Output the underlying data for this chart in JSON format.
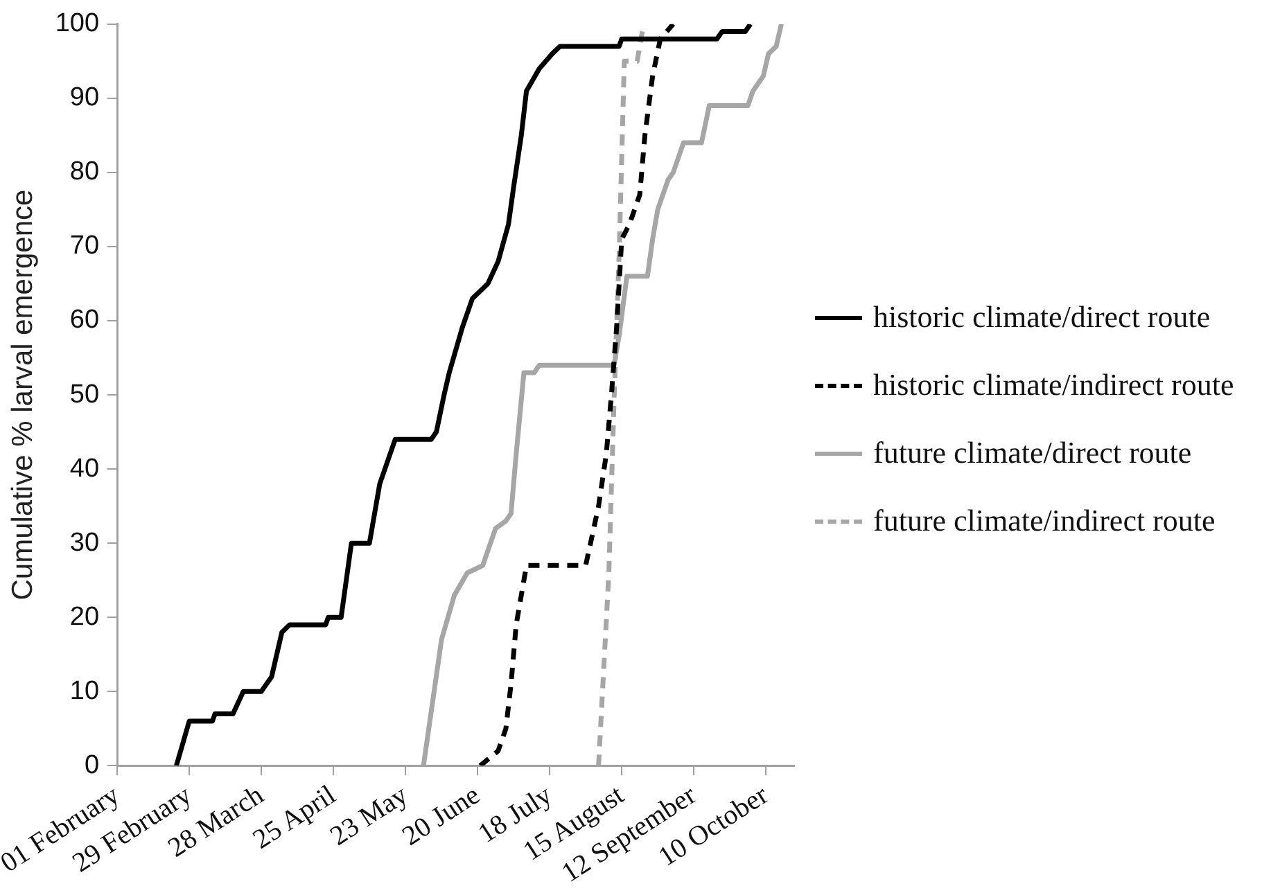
{
  "chart_data": {
    "type": "line",
    "ylabel": "Cumulative % larval emergence",
    "xlim": [
      "--02-01",
      "--10-21"
    ],
    "ylim": [
      0,
      100
    ],
    "xticks": [
      {
        "value": "--02-01",
        "label": "01 February"
      },
      {
        "value": "--02-29",
        "label": "29 February"
      },
      {
        "value": "--03-28",
        "label": "28 March"
      },
      {
        "value": "--04-25",
        "label": "25 April"
      },
      {
        "value": "--05-23",
        "label": "23 May"
      },
      {
        "value": "--06-20",
        "label": "20 June"
      },
      {
        "value": "--07-18",
        "label": "18 July"
      },
      {
        "value": "--08-15",
        "label": "15 August"
      },
      {
        "value": "--09-12",
        "label": "12 September"
      },
      {
        "value": "--10-10",
        "label": "10 October"
      }
    ],
    "yticks": [
      0,
      10,
      20,
      30,
      40,
      50,
      60,
      70,
      80,
      90,
      100
    ],
    "grid": false,
    "legend": "right",
    "marker": "none",
    "series": [
      {
        "name": "historic climate/direct route",
        "color": "#000000",
        "line_style": "solid",
        "x": [
          "--02-24",
          "--02-29",
          "--03-09",
          "--03-10",
          "--03-17",
          "--03-21",
          "--03-28",
          "--03-30",
          "--04-01",
          "--04-05",
          "--04-08",
          "--04-22",
          "--04-23",
          "--04-28",
          "--05-02",
          "--05-09",
          "--05-13",
          "--05-15",
          "--05-17",
          "--05-19",
          "--06-02",
          "--06-04",
          "--06-07",
          "--06-09",
          "--06-14",
          "--06-18",
          "--06-24",
          "--06-28",
          "--07-02",
          "--07-04",
          "--07-07",
          "--07-09",
          "--07-14",
          "--07-19",
          "--07-22",
          "--08-14",
          "--08-15",
          "--09-21",
          "--09-23",
          "--10-02",
          "--10-04"
        ],
        "values": [
          0,
          6,
          6,
          7,
          7,
          10,
          10,
          11,
          12,
          18,
          19,
          19,
          20,
          20,
          30,
          30,
          38,
          40,
          42,
          44,
          44,
          45,
          50,
          53,
          59,
          63,
          65,
          68,
          73,
          78,
          85,
          91,
          94,
          96,
          97,
          97,
          98,
          98,
          99,
          99,
          100
        ]
      },
      {
        "name": "historic climate/indirect route",
        "color": "#000000",
        "line_style": "dashed",
        "x": [
          "--06-21",
          "--06-28",
          "--07-01",
          "--07-03",
          "--07-05",
          "--07-09",
          "--08-01",
          "--08-06",
          "--08-09",
          "--08-11",
          "--08-13",
          "--08-15",
          "--08-18",
          "--08-22",
          "--08-24",
          "--08-27",
          "--08-30",
          "--09-04"
        ],
        "values": [
          0,
          2,
          5,
          11,
          19,
          27,
          27,
          35,
          42,
          50,
          59,
          71,
          73,
          77,
          85,
          93,
          98,
          100
        ]
      },
      {
        "name": "future climate/direct route",
        "color": "#a6a6a6",
        "line_style": "solid",
        "x": [
          "--05-30",
          "--06-06",
          "--06-11",
          "--06-16",
          "--06-22",
          "--06-24",
          "--06-27",
          "--07-01",
          "--07-03",
          "--07-05",
          "--07-08",
          "--07-12",
          "--07-14",
          "--08-12",
          "--08-14",
          "--08-17",
          "--08-25",
          "--08-27",
          "--08-29",
          "--09-02",
          "--09-04",
          "--09-08",
          "--09-15",
          "--09-18",
          "--10-03",
          "--10-05",
          "--10-09",
          "--10-11",
          "--10-14",
          "--10-16"
        ],
        "values": [
          0,
          17,
          23,
          26,
          27,
          29,
          32,
          33,
          34,
          42,
          53,
          53,
          54,
          54,
          58,
          66,
          66,
          71,
          75,
          79,
          80,
          84,
          84,
          89,
          89,
          91,
          93,
          96,
          97,
          100
        ]
      },
      {
        "name": "future climate/indirect route",
        "color": "#a6a6a6",
        "line_style": "dashed",
        "x": [
          "--08-06",
          "--08-10",
          "--08-12",
          "--08-14",
          "--08-15",
          "--08-16",
          "--08-21",
          "--08-23",
          "--08-24"
        ],
        "values": [
          0,
          26,
          49,
          69,
          82,
          95,
          95,
          99,
          100
        ]
      }
    ]
  }
}
